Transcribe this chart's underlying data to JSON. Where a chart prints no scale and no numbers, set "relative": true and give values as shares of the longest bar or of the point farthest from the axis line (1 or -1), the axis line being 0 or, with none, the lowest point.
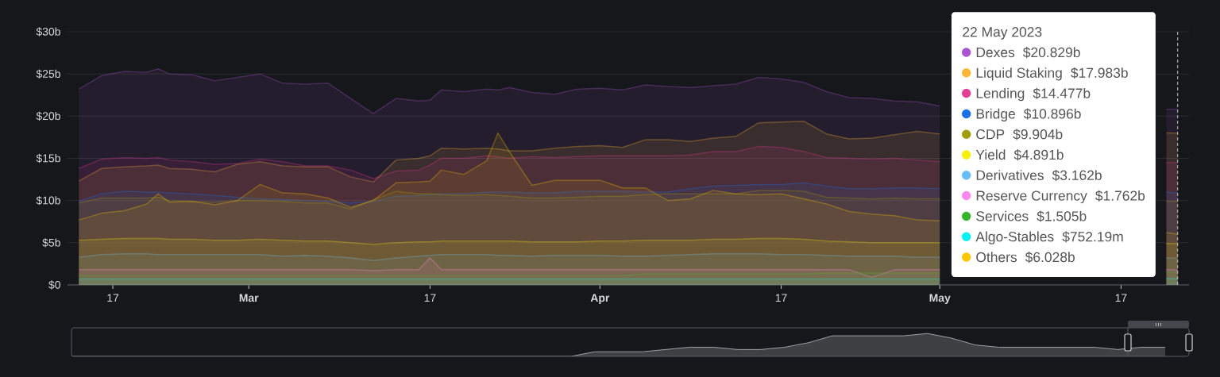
{
  "chart_data": [
    {
      "type": "area",
      "x": [
        "2023-02-14",
        "2023-02-16",
        "2023-02-18",
        "2023-02-20",
        "2023-02-21",
        "2023-02-22",
        "2023-02-24",
        "2023-02-26",
        "2023-02-28",
        "2023-03-02",
        "2023-03-04",
        "2023-03-06",
        "2023-03-08",
        "2023-03-10",
        "2023-03-12",
        "2023-03-14",
        "2023-03-16",
        "2023-03-17",
        "2023-03-18",
        "2023-03-20",
        "2023-03-22",
        "2023-03-23",
        "2023-03-24",
        "2023-03-26",
        "2023-03-28",
        "2023-03-30",
        "2023-04-01",
        "2023-04-03",
        "2023-04-05",
        "2023-04-07",
        "2023-04-09",
        "2023-04-11",
        "2023-04-13",
        "2023-04-15",
        "2023-04-17",
        "2023-04-19",
        "2023-04-21",
        "2023-04-23",
        "2023-04-25",
        "2023-04-27",
        "2023-04-29",
        "2023-05-01",
        "2023-05-03",
        "2023-05-05",
        "2023-05-07",
        "2023-05-09",
        "2023-05-11",
        "2023-05-13",
        "2023-05-15",
        "2023-05-17",
        "2023-05-19",
        "2023-05-21",
        "2023-05-22"
      ],
      "series": [
        {
          "name": "Dexes",
          "color": "#a855cf",
          "values": [
            23.2,
            24.8,
            25.3,
            25.2,
            25.6,
            25.0,
            24.9,
            24.2,
            24.6,
            25.0,
            23.9,
            23.8,
            23.9,
            22.1,
            20.3,
            22.1,
            21.8,
            21.9,
            23.1,
            22.9,
            23.2,
            23.1,
            23.4,
            22.8,
            22.6,
            23.2,
            23.3,
            23.1,
            23.7,
            23.5,
            23.4,
            23.6,
            23.8,
            24.6,
            24.4,
            24.0,
            22.9,
            22.2,
            22.1,
            21.8,
            21.7,
            21.2,
            null,
            null,
            null,
            null,
            null,
            null,
            null,
            null,
            null,
            20.8,
            20.829
          ]
        },
        {
          "name": "Liquid Staking",
          "color": "#fbb639",
          "values": [
            12.3,
            13.8,
            14.0,
            14.1,
            14.2,
            13.8,
            13.7,
            13.4,
            14.3,
            14.6,
            14.1,
            14.0,
            14.0,
            12.8,
            12.2,
            14.8,
            15.0,
            15.3,
            16.2,
            16.1,
            16.2,
            16.1,
            15.9,
            15.9,
            16.2,
            16.4,
            16.5,
            16.3,
            17.2,
            17.2,
            17.0,
            17.4,
            17.6,
            19.2,
            19.3,
            19.4,
            17.9,
            17.3,
            17.4,
            17.8,
            18.2,
            17.9,
            null,
            null,
            null,
            null,
            null,
            null,
            null,
            null,
            null,
            18.0,
            17.983
          ]
        },
        {
          "name": "Lending",
          "color": "#e43d95",
          "values": [
            13.8,
            14.9,
            15.1,
            15.0,
            15.1,
            14.8,
            14.6,
            14.3,
            14.4,
            14.9,
            14.6,
            14.1,
            14.1,
            13.6,
            12.6,
            13.5,
            13.6,
            14.2,
            15.0,
            15.0,
            15.3,
            15.2,
            15.0,
            15.2,
            15.1,
            15.2,
            15.3,
            15.3,
            15.3,
            15.3,
            15.4,
            15.8,
            15.8,
            16.4,
            16.3,
            15.8,
            15.1,
            15.0,
            14.9,
            15.0,
            14.8,
            14.6,
            null,
            null,
            null,
            null,
            null,
            null,
            null,
            null,
            null,
            14.5,
            14.477
          ]
        },
        {
          "name": "Bridge",
          "color": "#1a6fe8",
          "values": [
            9.9,
            10.8,
            11.1,
            11.0,
            11.0,
            10.9,
            10.8,
            10.6,
            10.4,
            10.2,
            10.1,
            10.0,
            9.9,
            9.7,
            9.9,
            10.5,
            10.6,
            10.7,
            10.8,
            10.8,
            11.0,
            11.0,
            11.0,
            10.9,
            10.9,
            11.1,
            11.1,
            11.1,
            11.0,
            11.0,
            11.4,
            11.7,
            11.8,
            11.9,
            11.9,
            12.1,
            11.7,
            11.4,
            11.4,
            11.5,
            11.5,
            11.4,
            null,
            null,
            null,
            null,
            null,
            null,
            null,
            null,
            null,
            11.0,
            10.896
          ]
        },
        {
          "name": "CDP",
          "color": "#a19c0a",
          "values": [
            9.7,
            10.3,
            10.3,
            10.3,
            10.4,
            10.0,
            9.9,
            9.8,
            10.0,
            10.0,
            9.9,
            9.7,
            9.7,
            9.0,
            10.1,
            11.1,
            10.8,
            10.8,
            10.7,
            10.6,
            10.7,
            10.6,
            10.5,
            10.3,
            10.3,
            10.4,
            10.5,
            10.5,
            10.7,
            10.8,
            10.8,
            10.8,
            10.8,
            11.2,
            11.2,
            11.1,
            10.4,
            10.3,
            10.2,
            10.3,
            10.2,
            10.2,
            null,
            null,
            null,
            null,
            null,
            null,
            null,
            null,
            null,
            9.9,
            9.904
          ]
        },
        {
          "name": "Yield",
          "color": "#f5f00a",
          "values": [
            5.3,
            5.4,
            5.5,
            5.5,
            5.5,
            5.4,
            5.4,
            5.3,
            5.3,
            5.4,
            5.3,
            5.2,
            5.2,
            5.0,
            4.8,
            5.0,
            5.1,
            5.1,
            5.2,
            5.2,
            5.2,
            5.2,
            5.2,
            5.1,
            5.1,
            5.1,
            5.2,
            5.2,
            5.3,
            5.3,
            5.3,
            5.4,
            5.4,
            5.5,
            5.5,
            5.4,
            5.2,
            5.1,
            5.0,
            5.0,
            5.0,
            5.0,
            null,
            null,
            null,
            null,
            null,
            null,
            null,
            null,
            null,
            4.9,
            4.891
          ]
        },
        {
          "name": "Derivatives",
          "color": "#66bdf9",
          "values": [
            3.3,
            3.6,
            3.7,
            3.7,
            3.6,
            3.6,
            3.6,
            3.6,
            3.6,
            3.6,
            3.4,
            3.5,
            3.4,
            3.2,
            2.9,
            3.2,
            3.4,
            3.5,
            3.6,
            3.6,
            3.6,
            3.5,
            3.5,
            3.4,
            3.5,
            3.5,
            3.5,
            3.4,
            3.4,
            3.5,
            3.6,
            3.7,
            3.7,
            3.7,
            3.6,
            3.6,
            3.5,
            3.4,
            3.4,
            3.4,
            3.3,
            3.3,
            null,
            null,
            null,
            null,
            null,
            null,
            null,
            null,
            null,
            3.2,
            3.162
          ]
        },
        {
          "name": "Reserve Currency",
          "color": "#ff88f0",
          "values": [
            1.8,
            1.8,
            1.8,
            1.8,
            1.8,
            1.8,
            1.8,
            1.8,
            1.8,
            1.8,
            1.8,
            1.8,
            1.8,
            1.8,
            1.7,
            1.8,
            1.8,
            3.2,
            1.8,
            1.8,
            1.8,
            1.8,
            1.8,
            1.8,
            1.8,
            1.8,
            1.8,
            1.8,
            1.8,
            1.8,
            1.8,
            1.8,
            1.8,
            1.8,
            1.8,
            1.8,
            1.8,
            1.8,
            0.9,
            1.8,
            1.8,
            1.8,
            null,
            null,
            null,
            null,
            null,
            null,
            null,
            null,
            null,
            1.8,
            1.762
          ]
        },
        {
          "name": "Services",
          "color": "#35b52e",
          "values": [
            1.1,
            1.1,
            1.1,
            1.1,
            1.1,
            1.1,
            1.1,
            1.1,
            1.1,
            1.1,
            1.1,
            1.1,
            1.1,
            1.1,
            1.1,
            1.1,
            1.1,
            1.1,
            1.1,
            1.1,
            1.1,
            1.1,
            1.1,
            1.1,
            1.1,
            1.1,
            1.1,
            1.1,
            1.3,
            1.3,
            1.3,
            1.3,
            1.3,
            1.3,
            1.3,
            1.3,
            1.4,
            1.4,
            1.4,
            1.4,
            1.4,
            1.4,
            null,
            null,
            null,
            null,
            null,
            null,
            null,
            null,
            null,
            1.5,
            1.505
          ]
        },
        {
          "name": "Algo-Stables",
          "color": "#05f2f2",
          "values": [
            0.7,
            0.7,
            0.7,
            0.7,
            0.7,
            0.7,
            0.7,
            0.7,
            0.7,
            0.7,
            0.7,
            0.7,
            0.7,
            0.7,
            0.7,
            0.7,
            0.7,
            0.7,
            0.7,
            0.7,
            0.7,
            0.7,
            0.7,
            0.7,
            0.7,
            0.7,
            0.7,
            0.7,
            0.7,
            0.7,
            0.7,
            0.7,
            0.7,
            0.7,
            0.7,
            0.7,
            0.7,
            0.7,
            0.7,
            0.7,
            0.7,
            0.7,
            null,
            null,
            null,
            null,
            null,
            null,
            null,
            null,
            null,
            0.75,
            0.75219
          ]
        },
        {
          "name": "Others",
          "color": "#fdc700",
          "values": [
            7.7,
            8.5,
            8.8,
            9.6,
            10.8,
            9.8,
            9.9,
            9.5,
            10.0,
            11.9,
            10.9,
            10.8,
            10.3,
            9.2,
            10.0,
            12.1,
            12.2,
            12.3,
            13.6,
            13.1,
            14.7,
            18.0,
            15.8,
            11.8,
            12.4,
            12.4,
            12.4,
            11.5,
            11.5,
            10.0,
            10.2,
            11.2,
            10.8,
            10.7,
            10.8,
            10.2,
            9.6,
            8.7,
            8.4,
            8.2,
            7.7,
            7.6,
            null,
            null,
            null,
            null,
            null,
            null,
            null,
            null,
            null,
            6.2,
            6.028
          ]
        }
      ],
      "xlim": [
        "2023-02-13",
        "2023-05-23"
      ],
      "xticks": [
        {
          "value": "2023-02-17",
          "label": "17"
        },
        {
          "value": "2023-03-01",
          "label": "Mar"
        },
        {
          "value": "2023-03-17",
          "label": "17"
        },
        {
          "value": "2023-04-01",
          "label": "Apr"
        },
        {
          "value": "2023-04-17",
          "label": "17"
        },
        {
          "value": "2023-05-01",
          "label": "May"
        },
        {
          "value": "2023-05-17",
          "label": "17"
        }
      ],
      "ylim": [
        0,
        30
      ],
      "yticks": [
        {
          "value": 0,
          "label": "$0"
        },
        {
          "value": 5,
          "label": "$5b"
        },
        {
          "value": 10,
          "label": "$10b"
        },
        {
          "value": 15,
          "label": "$15b"
        },
        {
          "value": 20,
          "label": "$20b"
        },
        {
          "value": 25,
          "label": "$25b"
        },
        {
          "value": 30,
          "label": "$30b"
        }
      ],
      "grid": "y",
      "legend": "top right",
      "legend_title": "22 May 2023",
      "annotations": [
        "$20.829b",
        "$17.983b",
        "$14.477b",
        "$10.896b",
        "$9.904b",
        "$4.891b",
        "$3.162b",
        "$1.762b",
        "$1.505b",
        "$752.19m",
        "$6.028b"
      ],
      "ref_lines": [
        {
          "axis": "x",
          "value": "2023-05-22",
          "color": "#c8c8c8",
          "line_style": "dashed"
        }
      ]
    },
    {
      "type": "area",
      "relative": true,
      "categories": [
        null,
        null,
        null,
        null,
        null,
        null,
        null,
        null,
        null,
        null,
        null,
        null,
        null,
        null,
        null,
        null,
        null,
        null,
        null,
        null,
        null,
        null,
        null,
        null,
        null,
        null,
        null,
        null,
        null,
        null,
        null,
        null,
        null,
        null,
        null,
        null,
        null,
        null,
        null,
        null,
        null,
        null,
        null,
        null,
        null,
        null,
        null,
        null
      ],
      "values": [
        0,
        0,
        0,
        0,
        0,
        0,
        0,
        0,
        0,
        0,
        0,
        0,
        0,
        0,
        0,
        0,
        0,
        0,
        0,
        0,
        0,
        0,
        0.2,
        0.2,
        0.2,
        0.3,
        0.4,
        0.4,
        0.3,
        0.3,
        0.4,
        0.6,
        0.9,
        0.9,
        0.9,
        0.9,
        1,
        0.8,
        0.5,
        0.4,
        0.4,
        0.4,
        0.4,
        0.4,
        0.3,
        0.4,
        0.4,
        null
      ],
      "color": "#9ea0a6"
    }
  ]
}
